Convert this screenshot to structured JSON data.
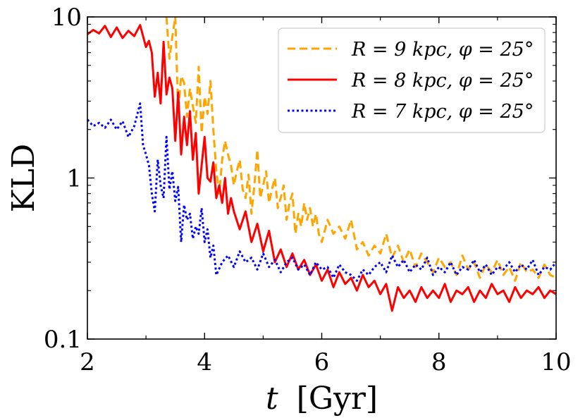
{
  "chart_data": {
    "type": "line",
    "xlabel_var": "t",
    "xlabel_unit": "[Gyr]",
    "ylabel": "KLD",
    "xlim": [
      2,
      10
    ],
    "ylim": [
      0.1,
      10
    ],
    "yscale": "log",
    "xticks": [
      2,
      4,
      6,
      8,
      10
    ],
    "xtick_labels": [
      "2",
      "4",
      "6",
      "8",
      "10"
    ],
    "yticks": [
      0.1,
      1,
      10
    ],
    "ytick_labels": [
      "0.1",
      "1",
      "10"
    ],
    "grid": false,
    "legend_position": "top-right",
    "series": [
      {
        "name": "R = 9 kpc, φ = 25°",
        "color": "#FFA500",
        "style": "dashed",
        "x": [
          3.35,
          3.4,
          3.45,
          3.5,
          3.55,
          3.6,
          3.65,
          3.7,
          3.75,
          3.8,
          3.85,
          3.9,
          3.95,
          4.0,
          4.05,
          4.1,
          4.15,
          4.2,
          4.25,
          4.3,
          4.35,
          4.4,
          4.45,
          4.5,
          4.55,
          4.6,
          4.65,
          4.7,
          4.75,
          4.8,
          4.85,
          4.9,
          4.95,
          5.0,
          5.05,
          5.1,
          5.15,
          5.2,
          5.25,
          5.3,
          5.35,
          5.4,
          5.45,
          5.5,
          5.55,
          5.6,
          5.65,
          5.7,
          5.75,
          5.8,
          5.85,
          5.9,
          5.95,
          6.0,
          6.1,
          6.2,
          6.3,
          6.4,
          6.5,
          6.6,
          6.7,
          6.8,
          6.9,
          7.0,
          7.1,
          7.2,
          7.3,
          7.4,
          7.5,
          7.6,
          7.7,
          7.8,
          7.9,
          8.0,
          8.1,
          8.2,
          8.3,
          8.4,
          8.5,
          8.6,
          8.7,
          8.8,
          8.9,
          9.0,
          9.1,
          9.2,
          9.3,
          9.4,
          9.5,
          9.6,
          9.7,
          9.8,
          9.9,
          10.0
        ],
        "y": [
          10,
          5.5,
          7.5,
          10,
          2.6,
          4.3,
          3.9,
          2.4,
          3.6,
          2.8,
          2.2,
          4.9,
          1.9,
          3.2,
          2.5,
          4.0,
          2.0,
          1.1,
          0.8,
          1.3,
          1.7,
          1.4,
          1.2,
          0.9,
          1.1,
          1.3,
          0.85,
          0.75,
          1.05,
          0.6,
          0.9,
          1.5,
          0.75,
          0.9,
          1.1,
          0.7,
          0.85,
          1.0,
          0.65,
          0.75,
          0.9,
          0.55,
          0.7,
          0.8,
          0.45,
          0.6,
          0.5,
          0.7,
          0.55,
          0.65,
          0.5,
          0.6,
          0.45,
          0.4,
          0.55,
          0.45,
          0.5,
          0.42,
          0.55,
          0.36,
          0.4,
          0.33,
          0.38,
          0.34,
          0.45,
          0.32,
          0.38,
          0.3,
          0.36,
          0.28,
          0.34,
          0.3,
          0.26,
          0.32,
          0.28,
          0.3,
          0.25,
          0.33,
          0.27,
          0.3,
          0.24,
          0.29,
          0.26,
          0.31,
          0.25,
          0.28,
          0.23,
          0.3,
          0.26,
          0.27,
          0.24,
          0.29,
          0.25,
          0.24
        ]
      },
      {
        "name": "R = 8 kpc, φ = 25°",
        "color": "#FF0000",
        "style": "solid",
        "x": [
          2.0,
          2.1,
          2.2,
          2.3,
          2.4,
          2.5,
          2.6,
          2.7,
          2.8,
          2.9,
          3.0,
          3.05,
          3.1,
          3.15,
          3.2,
          3.25,
          3.3,
          3.35,
          3.4,
          3.45,
          3.5,
          3.55,
          3.6,
          3.65,
          3.7,
          3.75,
          3.8,
          3.85,
          3.9,
          3.95,
          4.0,
          4.05,
          4.1,
          4.15,
          4.2,
          4.25,
          4.3,
          4.35,
          4.4,
          4.45,
          4.5,
          4.6,
          4.7,
          4.8,
          4.9,
          5.0,
          5.1,
          5.2,
          5.3,
          5.4,
          5.5,
          5.6,
          5.7,
          5.8,
          5.9,
          6.0,
          6.1,
          6.2,
          6.3,
          6.4,
          6.5,
          6.6,
          6.7,
          6.8,
          6.9,
          7.0,
          7.1,
          7.2,
          7.3,
          7.4,
          7.5,
          7.6,
          7.7,
          7.8,
          7.9,
          8.0,
          8.1,
          8.2,
          8.3,
          8.4,
          8.5,
          8.6,
          8.7,
          8.8,
          8.9,
          9.0,
          9.1,
          9.2,
          9.3,
          9.4,
          9.5,
          9.6,
          9.7,
          9.8,
          9.9,
          10.0
        ],
        "y": [
          7.8,
          8.3,
          7.9,
          8.8,
          7.5,
          8.6,
          7.4,
          8.2,
          7.6,
          8.9,
          6.5,
          7.1,
          6.0,
          3.2,
          4.5,
          2.9,
          7.0,
          3.3,
          4.2,
          3.6,
          1.7,
          3.4,
          1.4,
          2.4,
          1.6,
          2.6,
          1.3,
          1.9,
          0.8,
          1.2,
          1.8,
          1.0,
          0.95,
          1.25,
          0.75,
          0.9,
          0.7,
          1.0,
          0.6,
          0.75,
          0.62,
          0.48,
          0.62,
          0.4,
          0.52,
          0.35,
          0.47,
          0.3,
          0.36,
          0.28,
          0.34,
          0.27,
          0.31,
          0.25,
          0.29,
          0.23,
          0.27,
          0.21,
          0.26,
          0.22,
          0.24,
          0.2,
          0.25,
          0.21,
          0.23,
          0.19,
          0.22,
          0.15,
          0.21,
          0.18,
          0.2,
          0.17,
          0.21,
          0.18,
          0.2,
          0.18,
          0.22,
          0.17,
          0.2,
          0.19,
          0.21,
          0.17,
          0.2,
          0.18,
          0.22,
          0.19,
          0.2,
          0.17,
          0.21,
          0.18,
          0.2,
          0.19,
          0.21,
          0.18,
          0.2,
          0.19
        ]
      },
      {
        "name": "R = 7 kpc, φ = 25°",
        "color": "#0000FF",
        "style": "dotted",
        "x": [
          2.0,
          2.1,
          2.2,
          2.3,
          2.4,
          2.5,
          2.6,
          2.7,
          2.8,
          2.9,
          2.95,
          3.0,
          3.05,
          3.1,
          3.15,
          3.2,
          3.25,
          3.3,
          3.35,
          3.4,
          3.45,
          3.5,
          3.55,
          3.6,
          3.65,
          3.7,
          3.75,
          3.8,
          3.85,
          3.9,
          3.95,
          4.0,
          4.05,
          4.1,
          4.15,
          4.2,
          4.3,
          4.4,
          4.5,
          4.6,
          4.7,
          4.8,
          4.9,
          5.0,
          5.1,
          5.2,
          5.3,
          5.4,
          5.5,
          5.6,
          5.7,
          5.8,
          5.9,
          6.0,
          6.1,
          6.2,
          6.3,
          6.4,
          6.5,
          6.6,
          6.7,
          6.8,
          6.9,
          7.0,
          7.1,
          7.2,
          7.3,
          7.4,
          7.5,
          7.6,
          7.7,
          7.8,
          7.9,
          8.0,
          8.1,
          8.2,
          8.3,
          8.4,
          8.5,
          8.6,
          8.7,
          8.8,
          8.9,
          9.0,
          9.1,
          9.2,
          9.3,
          9.4,
          9.5,
          9.6,
          9.7,
          9.8,
          9.9,
          10.0
        ],
        "y": [
          2.3,
          2.1,
          2.2,
          2.05,
          2.3,
          2.0,
          2.25,
          1.8,
          2.1,
          2.9,
          1.6,
          1.4,
          1.2,
          0.8,
          0.62,
          1.3,
          0.9,
          0.75,
          1.8,
          0.85,
          1.1,
          0.72,
          0.88,
          0.4,
          0.68,
          0.55,
          0.6,
          0.42,
          0.5,
          0.45,
          0.65,
          0.4,
          0.48,
          0.32,
          0.38,
          0.25,
          0.3,
          0.33,
          0.28,
          0.35,
          0.3,
          0.32,
          0.27,
          0.34,
          0.28,
          0.31,
          0.26,
          0.3,
          0.32,
          0.27,
          0.29,
          0.25,
          0.3,
          0.27,
          0.28,
          0.24,
          0.29,
          0.26,
          0.25,
          0.23,
          0.27,
          0.25,
          0.28,
          0.3,
          0.26,
          0.33,
          0.28,
          0.31,
          0.26,
          0.29,
          0.27,
          0.32,
          0.25,
          0.28,
          0.26,
          0.3,
          0.25,
          0.28,
          0.27,
          0.31,
          0.26,
          0.29,
          0.25,
          0.28,
          0.27,
          0.3,
          0.26,
          0.29,
          0.27,
          0.31,
          0.25,
          0.28,
          0.27,
          0.3
        ]
      }
    ]
  }
}
